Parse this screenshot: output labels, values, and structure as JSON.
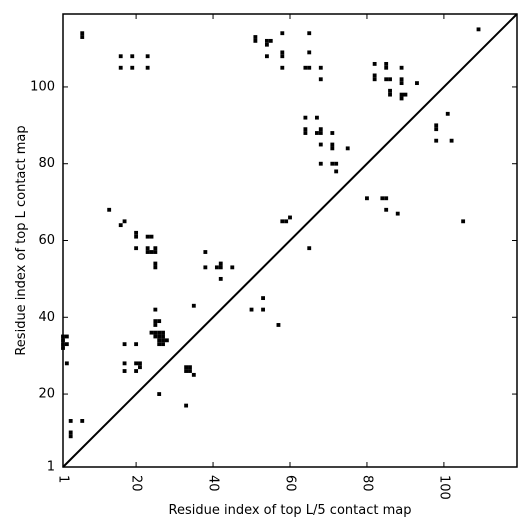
{
  "chart_data": {
    "type": "heatmap",
    "title": "",
    "xlabel": "Residue index of top L/5 contact map",
    "ylabel": "Residue index of top L contact map",
    "xlim": [
      1,
      119
    ],
    "ylim": [
      1,
      119
    ],
    "x_ticks": [
      1,
      20,
      40,
      60,
      80,
      100
    ],
    "y_ticks": [
      1,
      20,
      40,
      60,
      80,
      100
    ],
    "grid": false,
    "diagonal_line": true,
    "cell_color": "#000000",
    "background_color": "#ffffff",
    "upper_triangle_contacts": [
      [
        6,
        113
      ],
      [
        6,
        114
      ],
      [
        16,
        108
      ],
      [
        19,
        108
      ],
      [
        23,
        108
      ],
      [
        16,
        105
      ],
      [
        19,
        105
      ],
      [
        23,
        105
      ],
      [
        51,
        112
      ],
      [
        51,
        113
      ],
      [
        54,
        111
      ],
      [
        54,
        112
      ],
      [
        55,
        112
      ],
      [
        54,
        108
      ],
      [
        58,
        114
      ],
      [
        58,
        109
      ],
      [
        58,
        108
      ],
      [
        58,
        105
      ],
      [
        65,
        114
      ],
      [
        65,
        109
      ],
      [
        64,
        105
      ],
      [
        65,
        105
      ],
      [
        68,
        105
      ],
      [
        68,
        102
      ],
      [
        82,
        106
      ],
      [
        85,
        106
      ],
      [
        85,
        105
      ],
      [
        89,
        105
      ],
      [
        82,
        103
      ],
      [
        82,
        102
      ],
      [
        85,
        102
      ],
      [
        86,
        102
      ],
      [
        89,
        102
      ],
      [
        89,
        101
      ],
      [
        93,
        101
      ],
      [
        86,
        99
      ],
      [
        86,
        98
      ],
      [
        89,
        98
      ],
      [
        89,
        97
      ],
      [
        90,
        98
      ],
      [
        64,
        92
      ],
      [
        67,
        92
      ],
      [
        64,
        89
      ],
      [
        64,
        88
      ],
      [
        67,
        88
      ],
      [
        68,
        89
      ],
      [
        68,
        88
      ],
      [
        71,
        88
      ],
      [
        68,
        85
      ],
      [
        71,
        85
      ],
      [
        71,
        84
      ],
      [
        75,
        84
      ],
      [
        68,
        80
      ],
      [
        71,
        80
      ],
      [
        72,
        80
      ],
      [
        72,
        78
      ],
      [
        98,
        90
      ],
      [
        98,
        89
      ],
      [
        101,
        93
      ],
      [
        98,
        86
      ],
      [
        102,
        86
      ],
      [
        109,
        115
      ],
      [
        80,
        71
      ],
      [
        84,
        71
      ],
      [
        85,
        71
      ],
      [
        85,
        68
      ],
      [
        88,
        67
      ],
      [
        105,
        65
      ],
      [
        58,
        65
      ],
      [
        59,
        65
      ],
      [
        60,
        66
      ],
      [
        65,
        58
      ]
    ],
    "lower_triangle_contacts": [
      [
        13,
        68
      ],
      [
        16,
        64
      ],
      [
        17,
        65
      ],
      [
        20,
        62
      ],
      [
        20,
        61
      ],
      [
        20,
        58
      ],
      [
        23,
        61
      ],
      [
        24,
        61
      ],
      [
        23,
        58
      ],
      [
        23,
        57
      ],
      [
        24,
        57
      ],
      [
        25,
        58
      ],
      [
        25,
        57
      ],
      [
        25,
        54
      ],
      [
        25,
        53
      ],
      [
        38,
        57
      ],
      [
        38,
        53
      ],
      [
        41,
        53
      ],
      [
        42,
        53
      ],
      [
        42,
        54
      ],
      [
        42,
        50
      ],
      [
        45,
        53
      ],
      [
        35,
        43
      ],
      [
        53,
        45
      ],
      [
        50,
        42
      ],
      [
        53,
        42
      ],
      [
        57,
        38
      ],
      [
        25,
        42
      ],
      [
        25,
        39
      ],
      [
        26,
        39
      ],
      [
        25,
        38
      ],
      [
        24,
        36
      ],
      [
        25,
        36
      ],
      [
        26,
        36
      ],
      [
        27,
        36
      ],
      [
        25,
        35
      ],
      [
        26,
        35
      ],
      [
        27,
        35
      ],
      [
        26,
        34
      ],
      [
        27,
        34
      ],
      [
        28,
        34
      ],
      [
        26,
        33
      ],
      [
        27,
        33
      ],
      [
        17,
        33
      ],
      [
        20,
        33
      ],
      [
        1,
        35
      ],
      [
        1,
        34
      ],
      [
        1,
        33
      ],
      [
        1,
        32
      ],
      [
        2,
        35
      ],
      [
        2,
        33
      ],
      [
        2,
        28
      ],
      [
        17,
        28
      ],
      [
        20,
        28
      ],
      [
        21,
        28
      ],
      [
        21,
        27
      ],
      [
        17,
        26
      ],
      [
        20,
        26
      ],
      [
        33,
        27
      ],
      [
        34,
        27
      ],
      [
        33,
        26
      ],
      [
        34,
        26
      ],
      [
        35,
        25
      ],
      [
        26,
        20
      ],
      [
        33,
        17
      ],
      [
        3,
        13
      ],
      [
        6,
        13
      ],
      [
        3,
        10
      ],
      [
        3,
        9
      ]
    ]
  }
}
